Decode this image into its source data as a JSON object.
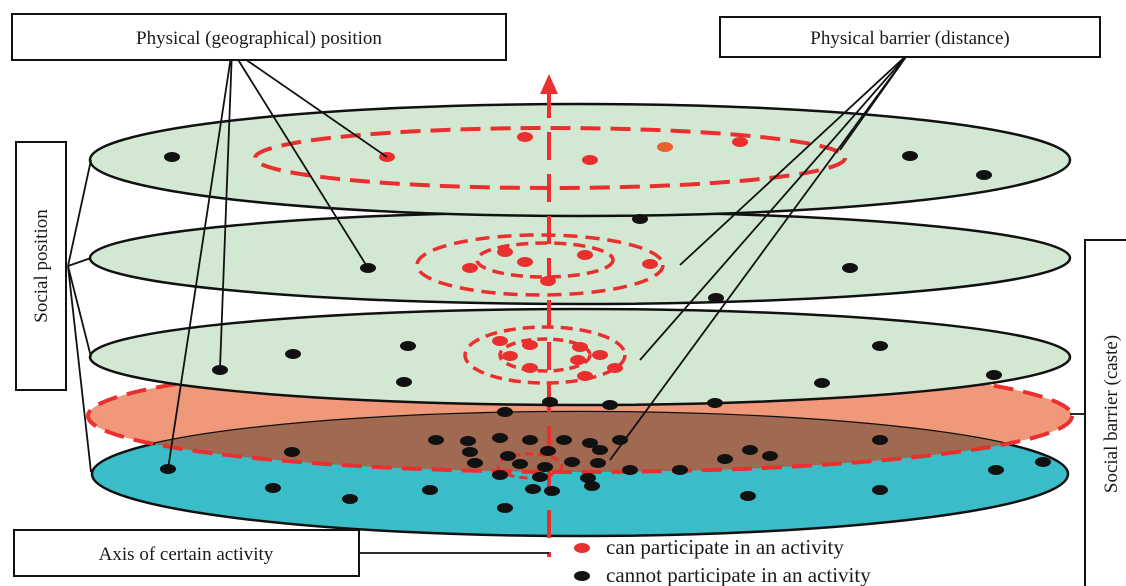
{
  "labels": {
    "physical_position": "Physical (geographical) position",
    "physical_barrier": "Physical barrier (distance)",
    "social_position": "Social position",
    "social_barrier": "Social barrier (caste)",
    "axis_activity": "Axis of certain activity"
  },
  "legend": {
    "can": "can participate in an activity",
    "cannot": "cannot participate in an activity"
  },
  "colors": {
    "plane_fill": "#d3e8d2",
    "orange_plane": "#f0987a",
    "brown_overlap": "#a06a52",
    "teal_plane": "#3bbcc9",
    "red": "#ea2f2f",
    "black": "#111111"
  }
}
